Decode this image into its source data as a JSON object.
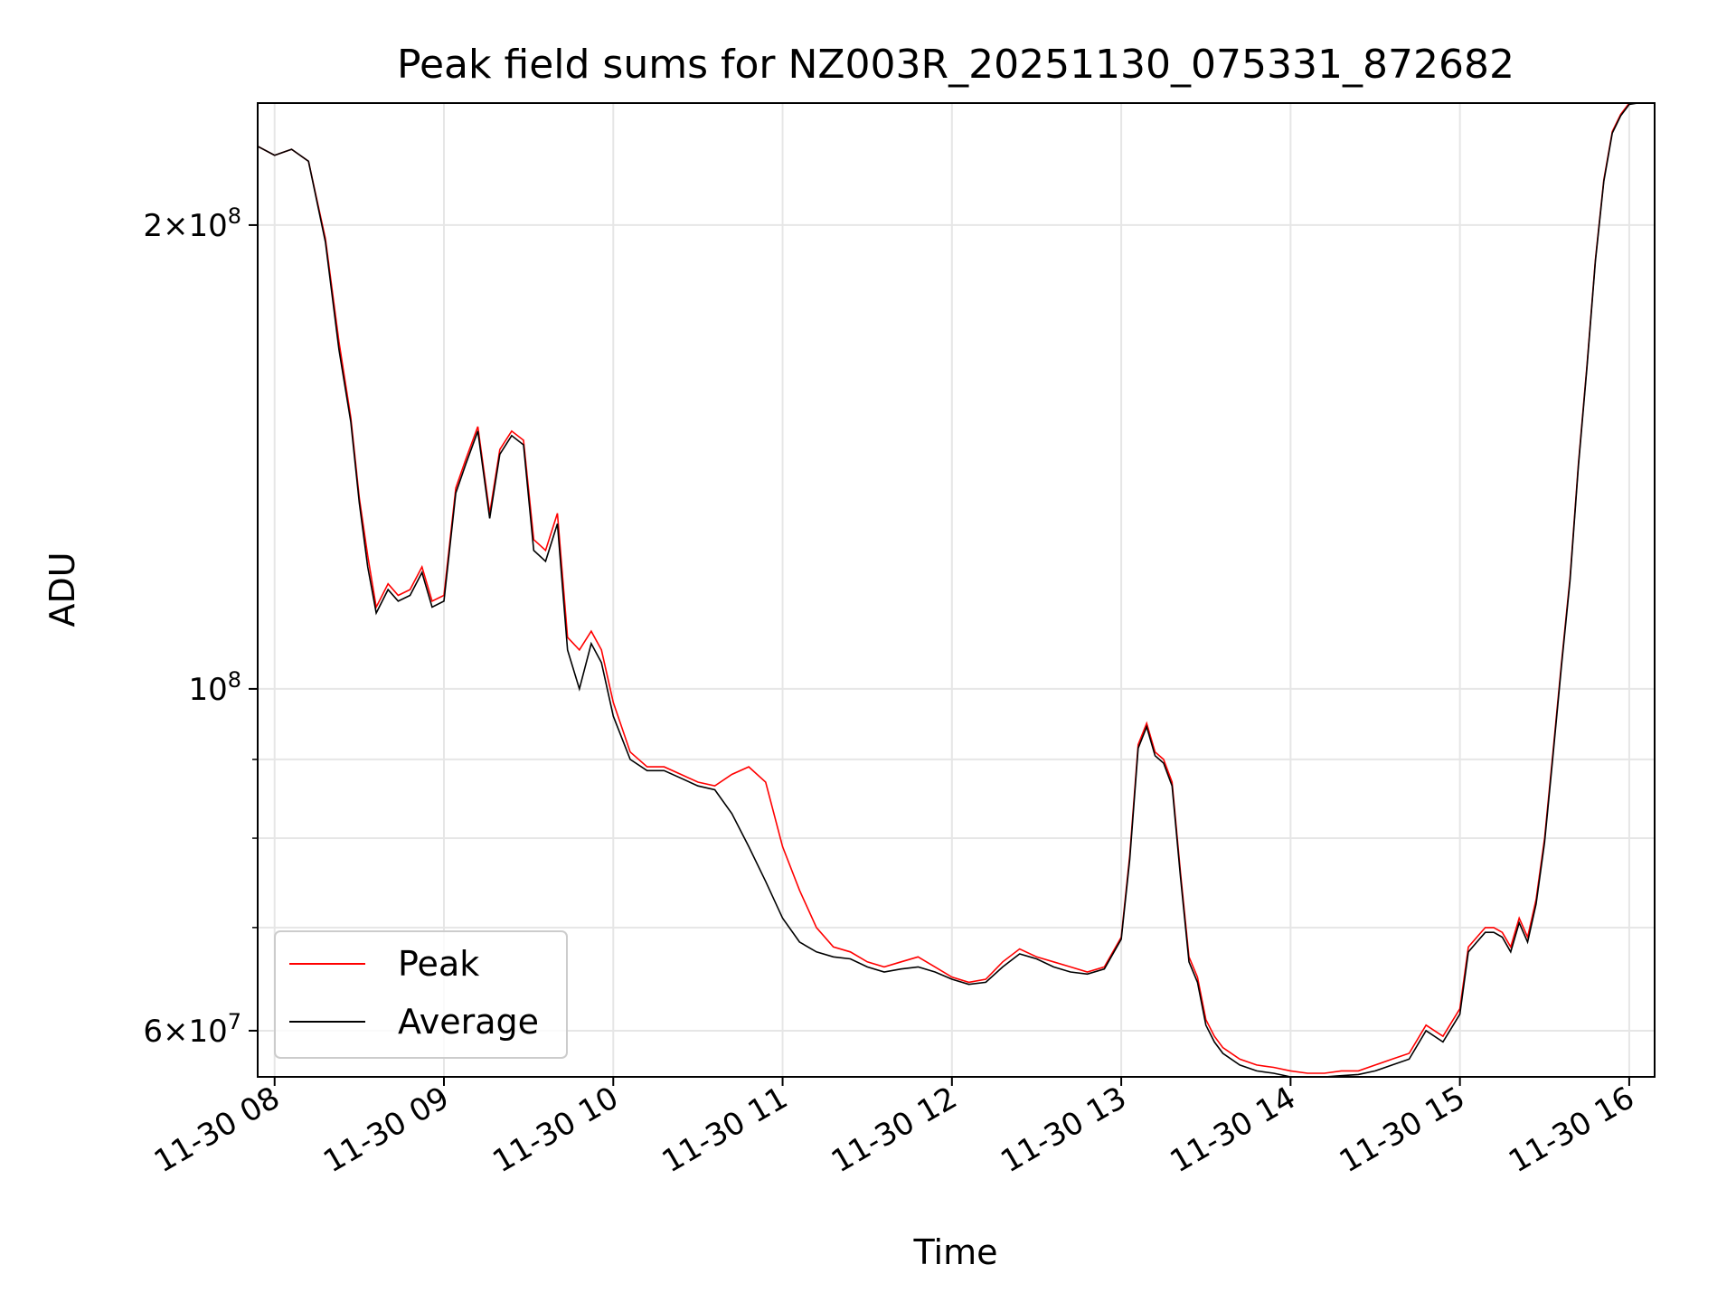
{
  "chart_data": {
    "type": "line",
    "title": "Peak field sums for NZ003R_20251130_075331_872682",
    "xlabel": "Time",
    "ylabel": "ADU",
    "yscale": "log",
    "ylim": [
      56000000,
      240000000
    ],
    "xlim": [
      7.9,
      16.15
    ],
    "grid": true,
    "legend_position": "lower-left",
    "x_ticks": [
      {
        "value": 8,
        "label": "11-30 08"
      },
      {
        "value": 9,
        "label": "11-30 09"
      },
      {
        "value": 10,
        "label": "11-30 10"
      },
      {
        "value": 11,
        "label": "11-30 11"
      },
      {
        "value": 12,
        "label": "11-30 12"
      },
      {
        "value": 13,
        "label": "11-30 13"
      },
      {
        "value": 14,
        "label": "11-30 14"
      },
      {
        "value": 15,
        "label": "11-30 15"
      },
      {
        "value": 16,
        "label": "11-30 16"
      }
    ],
    "y_major_ticks": [
      {
        "value": 60000000,
        "mantissa": "6",
        "exponent": "7"
      },
      {
        "value": 100000000,
        "mantissa": "",
        "exponent": "8"
      },
      {
        "value": 200000000,
        "mantissa": "2",
        "exponent": "8"
      }
    ],
    "y_minor_ticks": [
      70000000,
      80000000,
      90000000
    ],
    "times_hours": [
      7.9,
      8.0,
      8.1,
      8.2,
      8.3,
      8.38,
      8.45,
      8.5,
      8.55,
      8.6,
      8.67,
      8.73,
      8.8,
      8.87,
      8.93,
      9.0,
      9.07,
      9.13,
      9.2,
      9.27,
      9.33,
      9.4,
      9.47,
      9.53,
      9.6,
      9.67,
      9.73,
      9.8,
      9.87,
      9.93,
      10.0,
      10.1,
      10.2,
      10.3,
      10.4,
      10.5,
      10.6,
      10.7,
      10.8,
      10.9,
      11.0,
      11.1,
      11.2,
      11.3,
      11.4,
      11.5,
      11.6,
      11.7,
      11.8,
      11.9,
      12.0,
      12.1,
      12.2,
      12.3,
      12.4,
      12.5,
      12.6,
      12.7,
      12.8,
      12.9,
      13.0,
      13.05,
      13.1,
      13.15,
      13.2,
      13.25,
      13.3,
      13.35,
      13.4,
      13.45,
      13.5,
      13.55,
      13.6,
      13.7,
      13.8,
      13.9,
      14.0,
      14.1,
      14.2,
      14.3,
      14.4,
      14.5,
      14.6,
      14.7,
      14.8,
      14.9,
      15.0,
      15.05,
      15.1,
      15.15,
      15.2,
      15.25,
      15.3,
      15.35,
      15.4,
      15.45,
      15.5,
      15.55,
      15.6,
      15.65,
      15.7,
      15.75,
      15.8,
      15.85,
      15.9,
      15.95,
      16.0,
      16.05
    ],
    "series": [
      {
        "name": "Peak",
        "color": "#ff0000",
        "values": [
          225000000,
          222000000,
          224000000,
          220000000,
          196000000,
          168000000,
          150000000,
          133000000,
          122000000,
          113000000,
          117000000,
          115000000,
          116000000,
          120000000,
          114000000,
          115000000,
          135000000,
          141000000,
          148000000,
          130000000,
          143000000,
          147000000,
          145000000,
          125000000,
          123000000,
          130000000,
          108000000,
          106000000,
          109000000,
          106000000,
          98000000,
          91000000,
          89000000,
          89000000,
          88000000,
          87000000,
          86500000,
          88000000,
          89000000,
          87000000,
          79000000,
          74000000,
          70000000,
          68000000,
          67500000,
          66500000,
          66000000,
          66500000,
          67000000,
          66000000,
          65000000,
          64500000,
          64800000,
          66500000,
          67800000,
          67000000,
          66500000,
          66000000,
          65500000,
          66000000,
          69000000,
          78000000,
          92000000,
          95000000,
          91000000,
          90000000,
          87000000,
          76000000,
          67000000,
          65000000,
          61000000,
          59500000,
          58500000,
          57500000,
          57000000,
          56800000,
          56500000,
          56300000,
          56300000,
          56500000,
          56500000,
          57000000,
          57500000,
          58000000,
          60500000,
          59500000,
          62000000,
          68000000,
          69000000,
          70000000,
          70000000,
          69500000,
          68000000,
          71000000,
          69000000,
          73000000,
          80000000,
          91000000,
          104000000,
          118000000,
          140000000,
          162000000,
          190000000,
          214000000,
          230000000,
          236000000,
          240000000,
          240000000
        ]
      },
      {
        "name": "Average",
        "color": "#000000",
        "values": [
          225000000,
          222000000,
          224000000,
          220000000,
          195000000,
          166000000,
          149000000,
          132000000,
          120000000,
          112000000,
          116000000,
          114000000,
          115000000,
          119000000,
          113000000,
          114000000,
          134000000,
          140000000,
          147000000,
          129000000,
          142000000,
          146000000,
          144000000,
          123000000,
          121000000,
          128000000,
          106000000,
          100000000,
          107000000,
          104000000,
          96000000,
          90000000,
          88500000,
          88500000,
          87500000,
          86500000,
          86000000,
          83000000,
          79000000,
          75000000,
          71000000,
          68500000,
          67500000,
          67000000,
          66800000,
          66000000,
          65500000,
          65800000,
          66000000,
          65500000,
          64800000,
          64300000,
          64500000,
          66000000,
          67300000,
          66800000,
          66000000,
          65500000,
          65300000,
          65800000,
          68800000,
          77500000,
          91500000,
          94500000,
          90500000,
          89500000,
          86500000,
          75500000,
          66500000,
          64500000,
          60500000,
          59000000,
          58000000,
          57000000,
          56500000,
          56300000,
          56000000,
          56000000,
          56000000,
          56100000,
          56200000,
          56500000,
          57000000,
          57500000,
          60000000,
          59000000,
          61500000,
          67500000,
          68500000,
          69500000,
          69500000,
          69000000,
          67500000,
          70500000,
          68500000,
          72500000,
          79500000,
          90500000,
          103500000,
          117500000,
          139500000,
          161500000,
          189500000,
          213500000,
          229500000,
          235500000,
          239500000,
          240000000
        ]
      }
    ]
  }
}
